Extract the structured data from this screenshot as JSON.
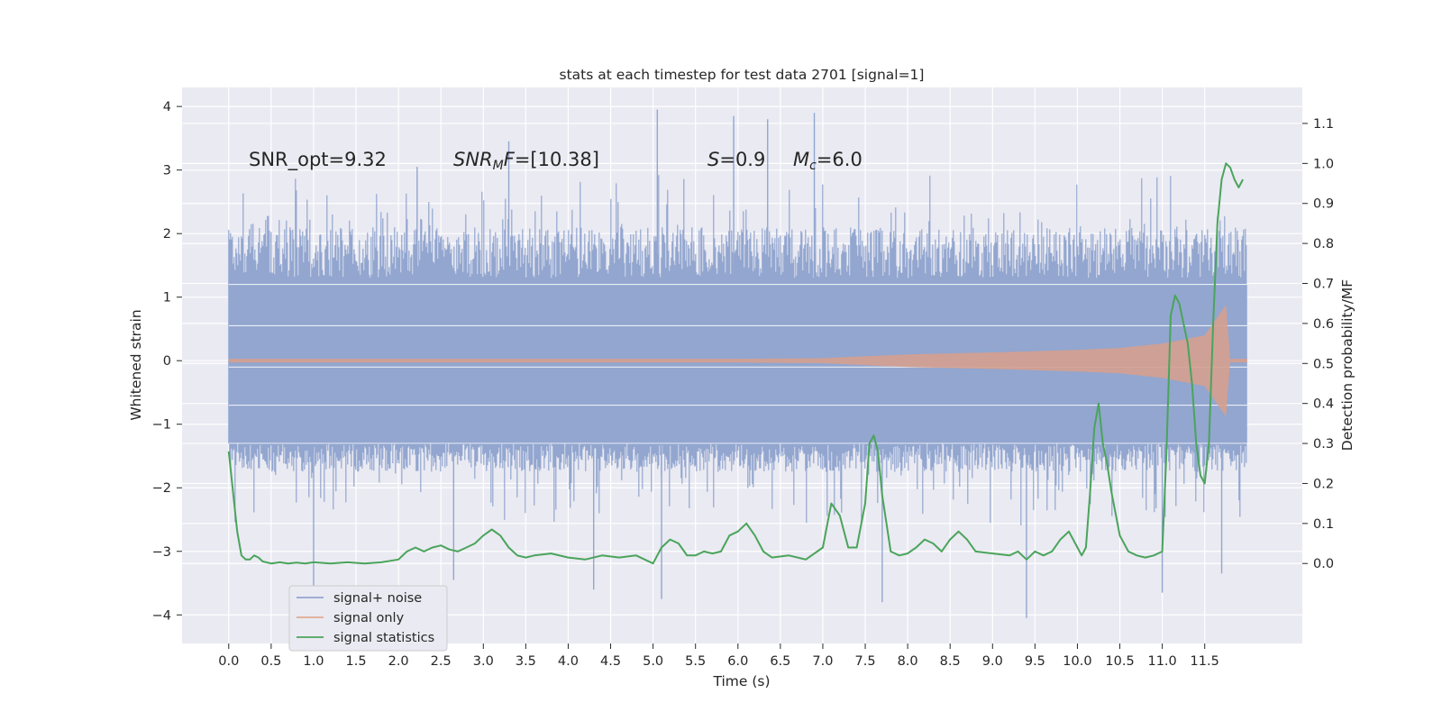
{
  "chart_data": {
    "type": "line",
    "title": "stats at each timestep for test data 2701 [signal=1]",
    "xlabel": "Time (s)",
    "ylabel_left": "Whitened strain",
    "ylabel_right": "Detection probability/MF",
    "xlim": [
      -0.55,
      12.65
    ],
    "ylim_left": [
      -4.45,
      4.3
    ],
    "ylim_right": [
      -0.2,
      1.19
    ],
    "xticks": [
      "0.0",
      "0.5",
      "1.0",
      "1.5",
      "2.0",
      "2.5",
      "3.0",
      "3.5",
      "4.0",
      "4.5",
      "5.0",
      "5.5",
      "6.0",
      "6.5",
      "7.0",
      "7.5",
      "8.0",
      "8.5",
      "9.0",
      "9.5",
      "10.0",
      "10.5",
      "11.0",
      "11.5"
    ],
    "yticks_left": [
      "4",
      "3",
      "2",
      "1",
      "0",
      "−1",
      "−2",
      "−3",
      "−4"
    ],
    "yticks_right": [
      "1.1",
      "1.0",
      "0.9",
      "0.8",
      "0.7",
      "0.6",
      "0.5",
      "0.4",
      "0.3",
      "0.2",
      "0.1",
      "0.0"
    ],
    "grid": true,
    "legend_location": "lower left",
    "annotations": {
      "snr_opt": "SNR_opt=9.32",
      "snr_mf_name": "SNR",
      "snr_mf_sub": "M",
      "snr_mf_rest": "F",
      "snr_mf_value": "=[10.38]",
      "s_name": "S",
      "s_value": "=0.9",
      "mc_name": "M",
      "mc_sub": "c",
      "mc_value": "=6.0"
    },
    "series": [
      {
        "name": "signal+ noise",
        "axis": "left",
        "color": "#92a6cf",
        "kind": "noise",
        "x_range": [
          0.0,
          12.0
        ],
        "typical_range": [
          -1.75,
          2.1
        ],
        "peaks": [
          {
            "x": 1.0,
            "y": -3.6
          },
          {
            "x": 2.22,
            "y": 3.05
          },
          {
            "x": 2.65,
            "y": -3.45
          },
          {
            "x": 3.3,
            "y": 3.45
          },
          {
            "x": 4.3,
            "y": -3.6
          },
          {
            "x": 5.05,
            "y": 3.95
          },
          {
            "x": 5.1,
            "y": -3.75
          },
          {
            "x": 5.95,
            "y": 3.85
          },
          {
            "x": 6.35,
            "y": 3.8
          },
          {
            "x": 6.9,
            "y": 3.9
          },
          {
            "x": 7.7,
            "y": -3.8
          },
          {
            "x": 9.4,
            "y": -4.05
          },
          {
            "x": 11.0,
            "y": -3.65
          },
          {
            "x": 11.7,
            "y": -3.35
          }
        ]
      },
      {
        "name": "signal only",
        "axis": "left",
        "color": "#d5a08f",
        "kind": "chirp",
        "x_range": [
          0.0,
          12.0
        ],
        "envelope": [
          [
            0.0,
            0.03
          ],
          [
            6.0,
            0.03
          ],
          [
            7.0,
            0.04
          ],
          [
            8.0,
            0.1
          ],
          [
            9.0,
            0.13
          ],
          [
            10.0,
            0.17
          ],
          [
            10.5,
            0.2
          ],
          [
            11.0,
            0.27
          ],
          [
            11.5,
            0.4
          ],
          [
            11.75,
            0.88
          ],
          [
            11.8,
            0.03
          ],
          [
            12.0,
            0.03
          ]
        ]
      },
      {
        "name": "signal statistics",
        "axis": "right",
        "color": "#4aa45b",
        "kind": "line",
        "x": [
          0.0,
          0.05,
          0.1,
          0.15,
          0.2,
          0.25,
          0.3,
          0.35,
          0.4,
          0.5,
          0.6,
          0.7,
          0.8,
          0.9,
          1.0,
          1.2,
          1.4,
          1.6,
          1.8,
          2.0,
          2.1,
          2.2,
          2.3,
          2.4,
          2.5,
          2.6,
          2.7,
          2.8,
          2.9,
          3.0,
          3.1,
          3.2,
          3.3,
          3.4,
          3.5,
          3.6,
          3.8,
          4.0,
          4.2,
          4.4,
          4.6,
          4.8,
          5.0,
          5.1,
          5.2,
          5.3,
          5.4,
          5.5,
          5.6,
          5.7,
          5.8,
          5.9,
          6.0,
          6.1,
          6.2,
          6.3,
          6.4,
          6.6,
          6.8,
          7.0,
          7.1,
          7.2,
          7.3,
          7.4,
          7.5,
          7.55,
          7.6,
          7.65,
          7.7,
          7.8,
          7.9,
          8.0,
          8.1,
          8.2,
          8.3,
          8.4,
          8.5,
          8.6,
          8.7,
          8.8,
          9.0,
          9.2,
          9.3,
          9.4,
          9.5,
          9.6,
          9.7,
          9.8,
          9.9,
          10.0,
          10.05,
          10.1,
          10.15,
          10.2,
          10.25,
          10.3,
          10.35,
          10.4,
          10.5,
          10.6,
          10.7,
          10.8,
          10.9,
          11.0,
          11.05,
          11.1,
          11.15,
          11.2,
          11.25,
          11.3,
          11.35,
          11.4,
          11.45,
          11.5,
          11.55,
          11.6,
          11.65,
          11.7,
          11.75,
          11.8,
          11.85,
          11.9,
          11.95
        ],
        "y": [
          0.28,
          0.18,
          0.08,
          0.02,
          0.01,
          0.01,
          0.02,
          0.015,
          0.005,
          0.0,
          0.003,
          0.0,
          0.002,
          0.0,
          0.003,
          0.0,
          0.003,
          0.0,
          0.003,
          0.01,
          0.03,
          0.04,
          0.03,
          0.04,
          0.045,
          0.035,
          0.03,
          0.04,
          0.05,
          0.07,
          0.085,
          0.07,
          0.04,
          0.02,
          0.015,
          0.02,
          0.025,
          0.015,
          0.01,
          0.02,
          0.015,
          0.02,
          0.0,
          0.04,
          0.06,
          0.05,
          0.02,
          0.02,
          0.03,
          0.025,
          0.03,
          0.07,
          0.08,
          0.1,
          0.07,
          0.03,
          0.015,
          0.02,
          0.01,
          0.04,
          0.15,
          0.12,
          0.04,
          0.04,
          0.15,
          0.3,
          0.32,
          0.28,
          0.17,
          0.03,
          0.02,
          0.025,
          0.04,
          0.06,
          0.05,
          0.03,
          0.06,
          0.08,
          0.06,
          0.03,
          0.025,
          0.02,
          0.03,
          0.01,
          0.03,
          0.02,
          0.03,
          0.06,
          0.08,
          0.04,
          0.02,
          0.04,
          0.18,
          0.34,
          0.4,
          0.3,
          0.25,
          0.18,
          0.07,
          0.03,
          0.02,
          0.015,
          0.02,
          0.03,
          0.28,
          0.62,
          0.67,
          0.65,
          0.6,
          0.55,
          0.45,
          0.3,
          0.22,
          0.2,
          0.3,
          0.6,
          0.85,
          0.96,
          1.0,
          0.99,
          0.96,
          0.94,
          0.96
        ]
      }
    ]
  }
}
